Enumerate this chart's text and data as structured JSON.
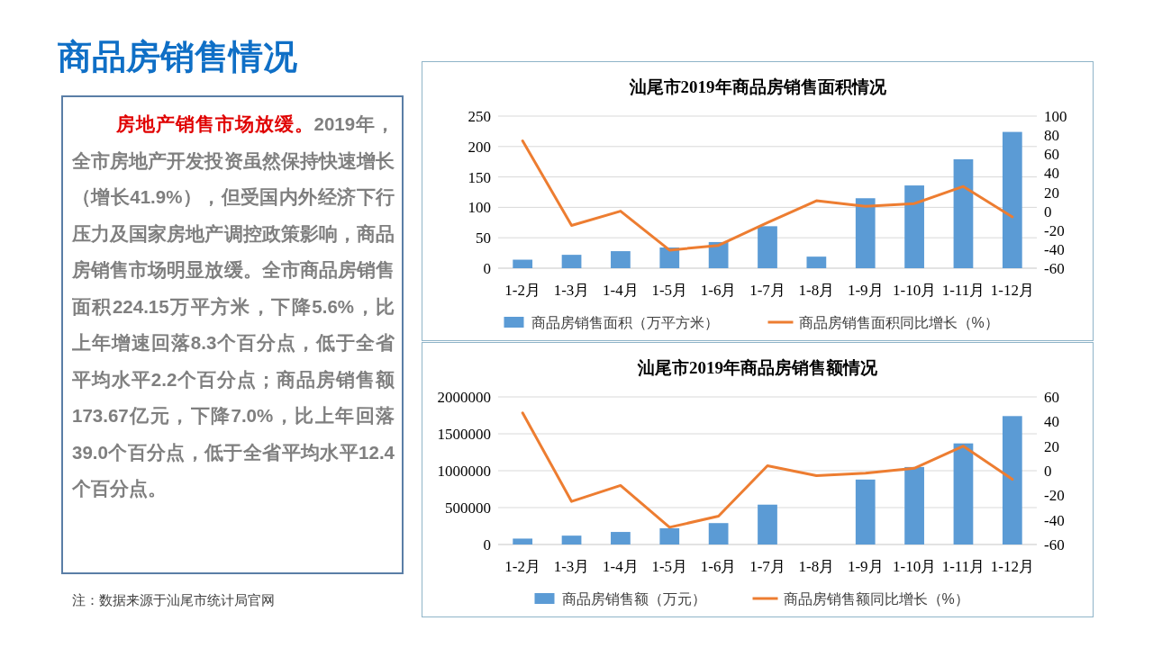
{
  "chart_data": [
    {
      "type": "other",
      "title": "商品房销售情况",
      "annotations": [
        "房地产销售市场放缓。",
        "2019年，全市房地产开发投资虽然保持快速增长（增长41.9%），但受国内外经济下行压力及国家房地产调控政策影响，商品房销售市场明显放缓。全市商品房销售面积224.15万平方米，下降5.6%，比上年增速回落8.3个百分点，低于全省平均水平2.2个百分点；商品房销售额173.67亿元，下降7.0%，比上年回落39.0个百分点，低于全省平均水平12.4个百分点。",
        "注：数据来源于汕尾市统计局官网"
      ]
    },
    {
      "type": "bar",
      "title": "汕尾市2019年商品房销售面积情况",
      "categories": [
        "1-2月",
        "1-3月",
        "1-4月",
        "1-5月",
        "1-6月",
        "1-7月",
        "1-8月",
        "1-9月",
        "1-10月",
        "1-11月",
        "1-12月"
      ],
      "series": [
        {
          "type": "bar",
          "name": "商品房销售面积（万平方米）",
          "color": "#5b9bd5",
          "values": [
            14,
            22,
            28,
            34,
            43,
            69,
            19,
            115,
            136,
            179,
            224
          ]
        },
        {
          "type": "line",
          "axis": "y2",
          "name": "商品房销售面积同比增长（%）",
          "color": "#ed7d31",
          "values": [
            74,
            -15,
            0,
            -41,
            -36,
            -12,
            11,
            5,
            8,
            26,
            -6
          ]
        }
      ],
      "ylim": [
        0,
        250
      ],
      "yticks": [
        0,
        50,
        100,
        150,
        200,
        250
      ],
      "y2lim": [
        -60,
        100
      ],
      "y2ticks": [
        -60,
        -40,
        -20,
        0,
        20,
        40,
        60,
        80,
        100
      ],
      "grid": "y",
      "legend": "bottom"
    },
    {
      "type": "bar",
      "title": "汕尾市2019年商品房销售额情况",
      "categories": [
        "1-2月",
        "1-3月",
        "1-4月",
        "1-5月",
        "1-6月",
        "1-7月",
        "1-8月",
        "1-9月",
        "1-10月",
        "1-11月",
        "1-12月"
      ],
      "series": [
        {
          "type": "bar",
          "name": "商品房销售额（万元）",
          "color": "#5b9bd5",
          "values": [
            80000,
            120000,
            170000,
            220000,
            290000,
            540000,
            null,
            880000,
            1050000,
            1370000,
            1740000
          ]
        },
        {
          "type": "line",
          "axis": "y2",
          "name": "商品房销售额同比增长（%）",
          "color": "#ed7d31",
          "values": [
            47,
            -25,
            -12,
            -46,
            -37,
            4,
            -4,
            -2,
            2,
            20,
            -7
          ]
        }
      ],
      "ylim": [
        0,
        2000000
      ],
      "yticks": [
        0,
        500000,
        1000000,
        1500000,
        2000000
      ],
      "y2lim": [
        -60,
        60
      ],
      "y2ticks": [
        -60,
        -40,
        -20,
        0,
        20,
        40,
        60
      ],
      "grid": "y",
      "legend": "bottom"
    }
  ]
}
